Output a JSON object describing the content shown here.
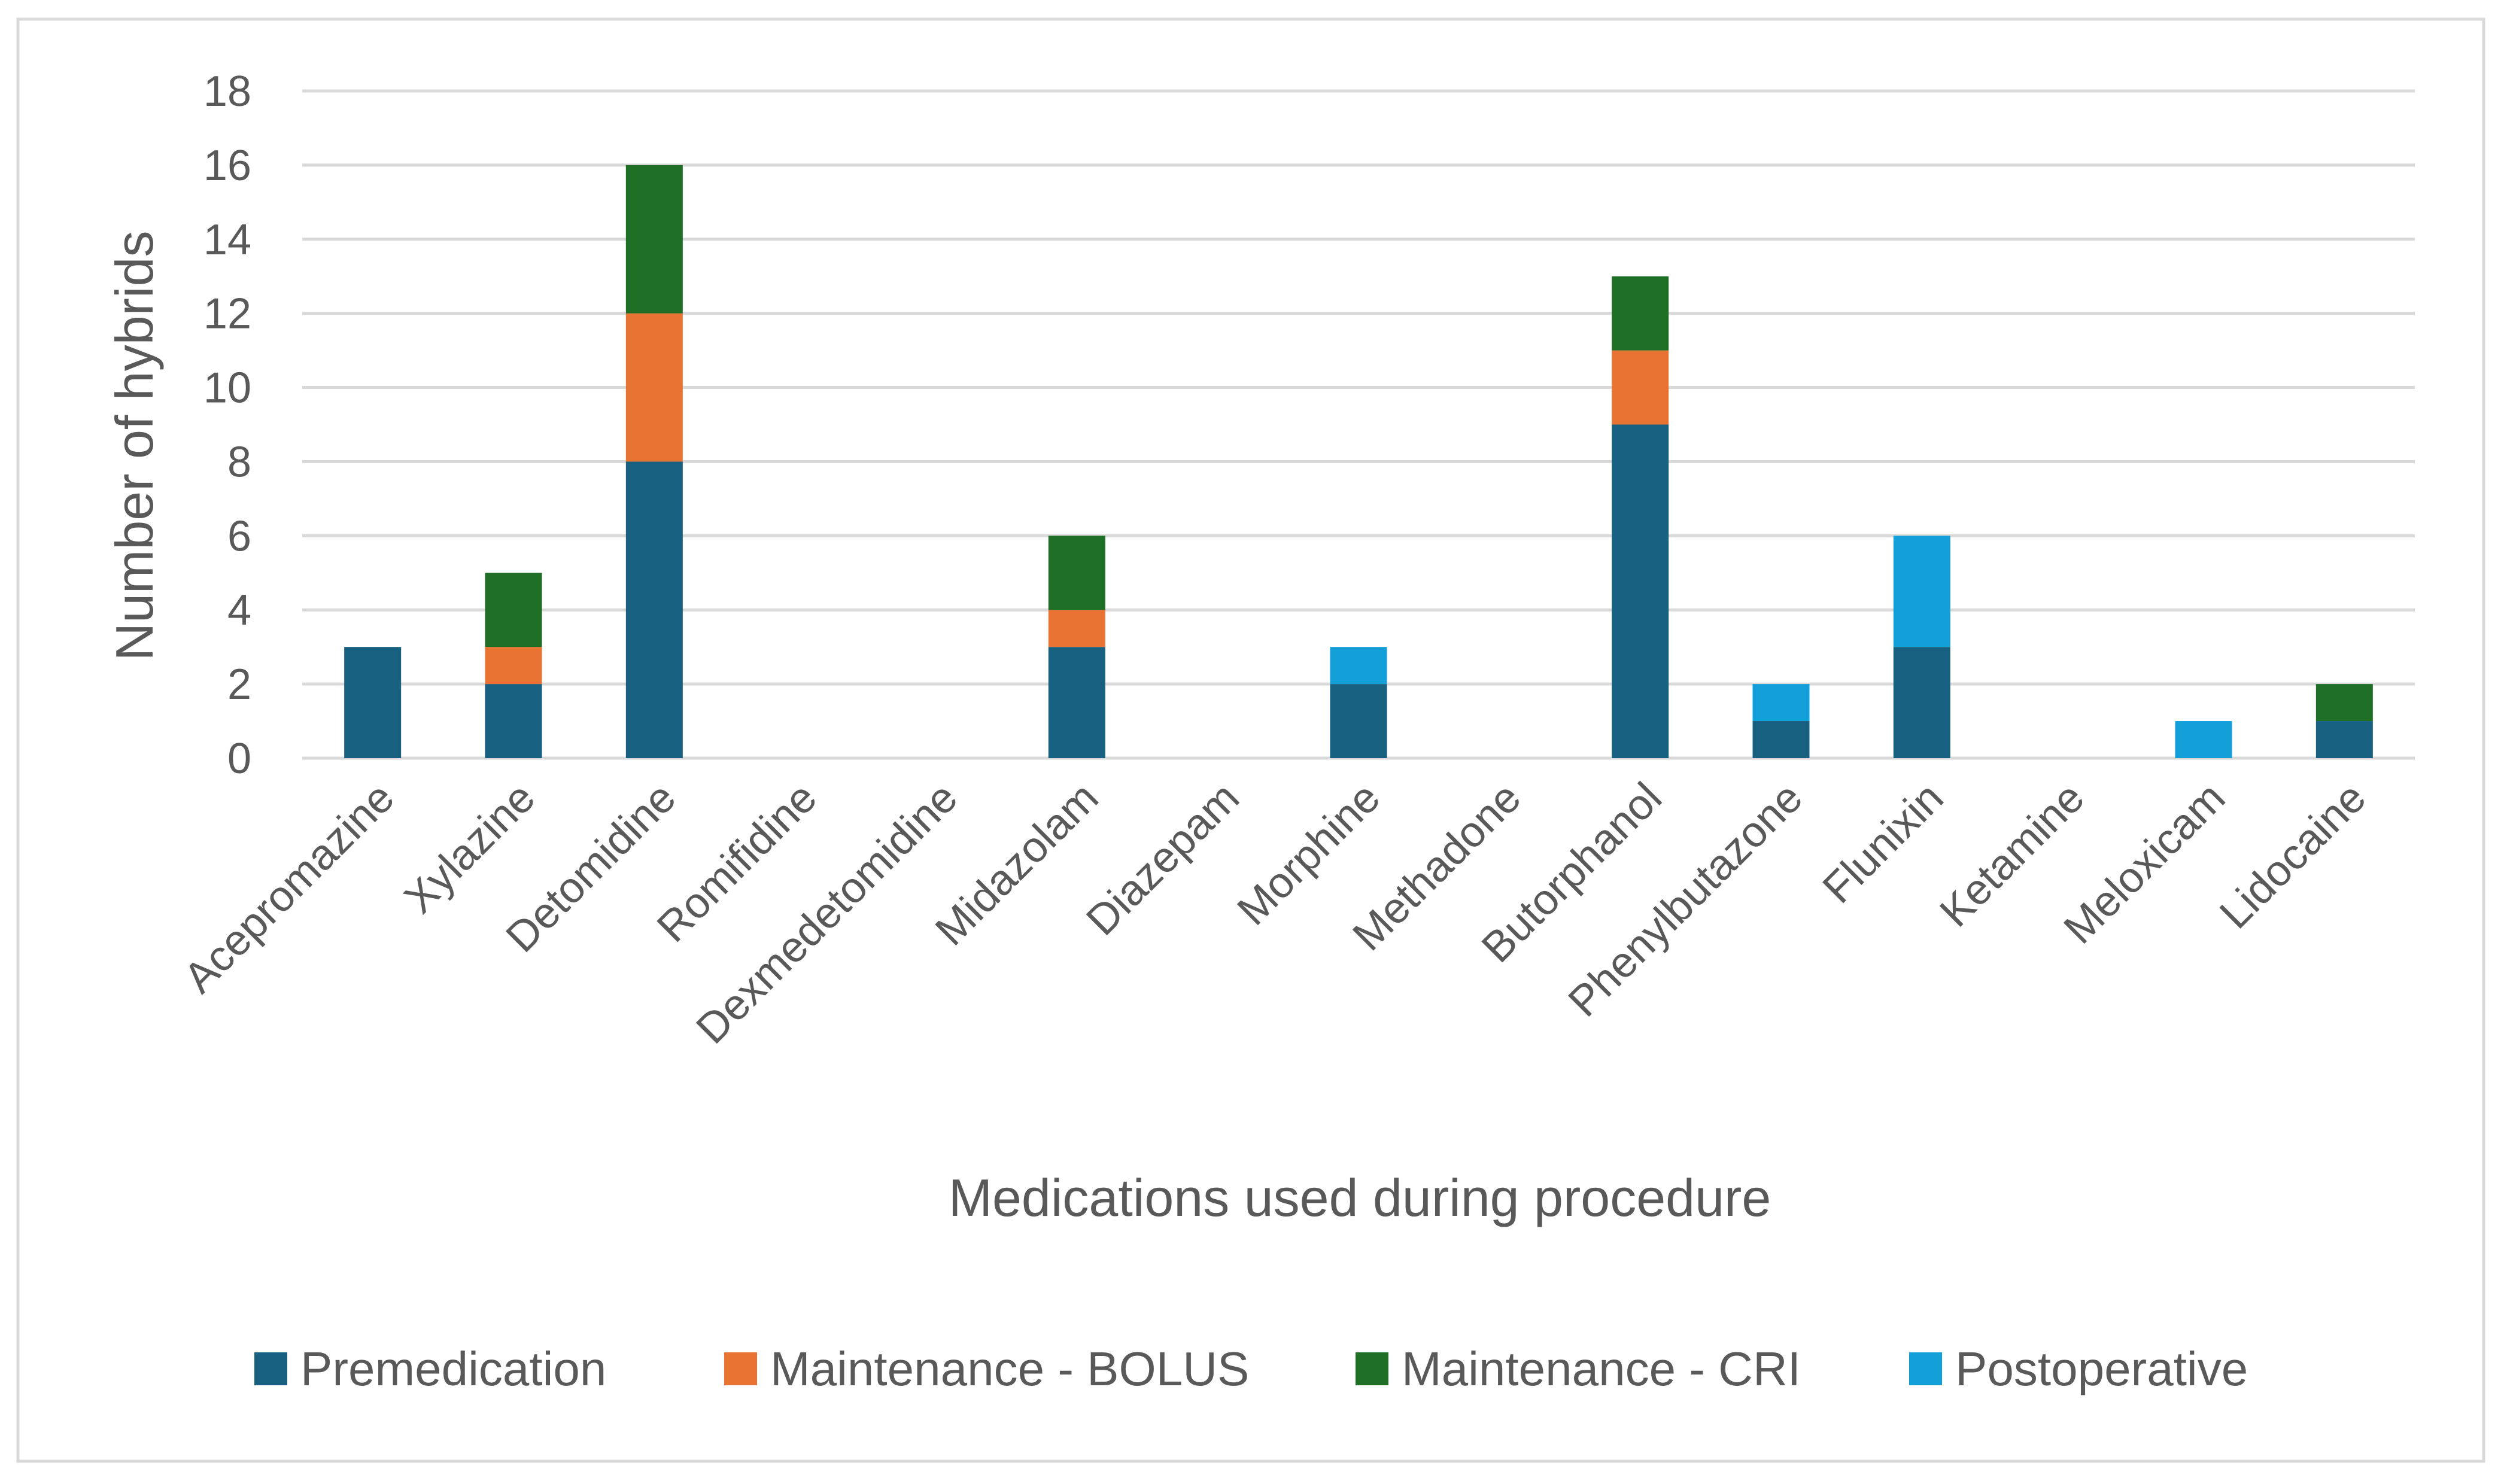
{
  "chart_data": {
    "type": "bar",
    "stacked": true,
    "title": "",
    "xlabel": "Medications used during procedure",
    "ylabel": "Number of hybrids",
    "ylim": [
      0,
      18
    ],
    "ytick_step": 2,
    "yticks": [
      "0",
      "2",
      "4",
      "6",
      "8",
      "10",
      "12",
      "14",
      "16",
      "18"
    ],
    "grid": true,
    "legend_position": "bottom",
    "categories": [
      "Acepromazine",
      "Xylazine",
      "Detomidine",
      "Romifidine",
      "Dexmedetomidine",
      "Midazolam",
      "Diazepam",
      "Morphine",
      "Methadone",
      "Butorphanol",
      "Phenylbutazone",
      "Flunixin",
      "Ketamine",
      "Meloxicam",
      "Lidocaine"
    ],
    "series": [
      {
        "name": "Premedication",
        "color": "#17607f",
        "values": [
          3,
          2,
          8,
          0,
          0,
          3,
          0,
          2,
          0,
          9,
          1,
          3,
          0,
          0,
          1
        ]
      },
      {
        "name": "Maintenance - BOLUS",
        "color": "#e87333",
        "values": [
          0,
          1,
          4,
          0,
          0,
          1,
          0,
          0,
          0,
          2,
          0,
          0,
          0,
          0,
          0
        ]
      },
      {
        "name": "Maintenance - CRI",
        "color": "#1e6e26",
        "values": [
          0,
          2,
          4,
          0,
          0,
          2,
          0,
          0,
          0,
          2,
          0,
          0,
          0,
          0,
          1
        ]
      },
      {
        "name": "Postoperative",
        "color": "#13a0d8",
        "values": [
          0,
          0,
          0,
          0,
          0,
          0,
          0,
          1,
          0,
          0,
          1,
          3,
          0,
          1,
          0
        ]
      }
    ],
    "gridline_color": "#d9d9d9",
    "frame_color": "#d9d9d9"
  }
}
